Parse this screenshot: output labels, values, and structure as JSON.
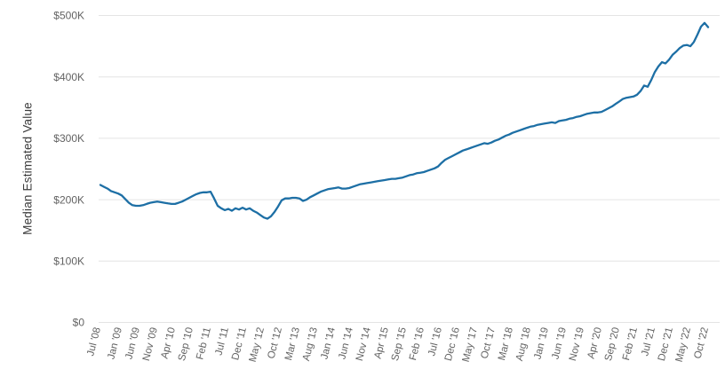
{
  "chart_data": {
    "type": "line",
    "title": "",
    "xlabel": "",
    "ylabel": "Median Estimated Value",
    "ylim_thousands": [
      0,
      500
    ],
    "grid": "horizontal-only",
    "legend": "none",
    "colors": {
      "line": "#1d6fa5",
      "gridline": "#e4e4e4",
      "tick_label": "#636363",
      "axis_title": "#3d3d3d",
      "background": "#ffffff"
    },
    "y_tick_labels": [
      "$0",
      "$100K",
      "$200K",
      "$300K",
      "$400K",
      "$500K"
    ],
    "y_tick_values_thousands": [
      0,
      100,
      200,
      300,
      400,
      500
    ],
    "x_tick_labels": [
      "Jul '08",
      "Jan '09",
      "Jun '09",
      "Nov '09",
      "Apr '10",
      "Sep '10",
      "Feb '11",
      "Jul '11",
      "Dec '11",
      "May '12",
      "Oct '12",
      "Mar '13",
      "Aug '13",
      "Jan '14",
      "Jun '14",
      "Nov '14",
      "Apr '15",
      "Sep '15",
      "Feb '16",
      "Jul '16",
      "Dec '16",
      "May '17",
      "Oct '17",
      "Mar '18",
      "Aug '18",
      "Jan '19",
      "Jun '19",
      "Nov '19",
      "Apr '20",
      "Sep '20",
      "Feb '21",
      "Jul '21",
      "Dec '21",
      "May '22",
      "Oct '22"
    ],
    "x_tick_point_indices": [
      0,
      6,
      11,
      16,
      21,
      26,
      31,
      36,
      41,
      46,
      51,
      56,
      61,
      66,
      71,
      76,
      81,
      86,
      91,
      96,
      101,
      106,
      111,
      116,
      121,
      126,
      131,
      136,
      141,
      146,
      151,
      156,
      161,
      166,
      171
    ],
    "series": [
      {
        "name": "Median Estimated Value",
        "cadence": "monthly",
        "start": "Jul 2008",
        "end": "Oct 2022",
        "unit": "USD thousands",
        "values": [
          224,
          221,
          218,
          214,
          212,
          210,
          207,
          201,
          195,
          191,
          190,
          190,
          191,
          193,
          195,
          196,
          197,
          196,
          195,
          194,
          193,
          193,
          195,
          197,
          200,
          203,
          206,
          209,
          211,
          212,
          212,
          213,
          202,
          190,
          186,
          183,
          185,
          182,
          186,
          184,
          187,
          184,
          186,
          182,
          179,
          175,
          171,
          169,
          173,
          180,
          189,
          199,
          202,
          202,
          203,
          203,
          202,
          198,
          200,
          204,
          207,
          210,
          213,
          215,
          217,
          218,
          219,
          220,
          218,
          218,
          219,
          221,
          223,
          225,
          226,
          227,
          228,
          229,
          230,
          231,
          232,
          233,
          234,
          234,
          235,
          236,
          238,
          240,
          241,
          243,
          244,
          245,
          247,
          249,
          251,
          254,
          260,
          265,
          268,
          271,
          274,
          277,
          280,
          282,
          284,
          286,
          288,
          290,
          292,
          291,
          293,
          296,
          298,
          301,
          304,
          306,
          309,
          311,
          313,
          315,
          317,
          319,
          320,
          322,
          323,
          324,
          325,
          326,
          325,
          328,
          329,
          330,
          332,
          333,
          335,
          336,
          338,
          340,
          341,
          342,
          342,
          343,
          346,
          349,
          352,
          356,
          360,
          364,
          366,
          367,
          368,
          371,
          377,
          386,
          384,
          395,
          408,
          417,
          424,
          422,
          428,
          436,
          441,
          447,
          451,
          452,
          450,
          457,
          469,
          482,
          488,
          481
        ]
      }
    ]
  }
}
